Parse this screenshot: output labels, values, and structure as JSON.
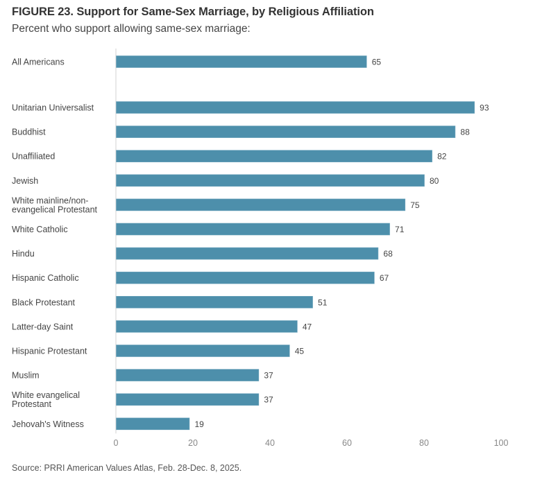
{
  "chart_data": {
    "type": "bar",
    "orientation": "horizontal",
    "title": "FIGURE 23.  Support for Same-Sex Marriage, by Religious Affiliation",
    "subtitle": "Percent who support allowing same-sex marriage:",
    "source": "Source: PRRI American Values Atlas, Feb. 28-Dec. 8, 2025.",
    "xlabel": "",
    "ylabel": "",
    "xlim": [
      0,
      100
    ],
    "xticks": [
      "0",
      "20",
      "40",
      "60",
      "80",
      "100"
    ],
    "grid": false,
    "bar_color": "#4d8fab",
    "categories": [
      [
        "All Americans"
      ],
      [
        "Unitarian Universalist"
      ],
      [
        "Buddhist"
      ],
      [
        "Unaffiliated"
      ],
      [
        "Jewish"
      ],
      [
        "White mainline/non-",
        "evangelical Protestant"
      ],
      [
        "White Catholic"
      ],
      [
        "Hindu"
      ],
      [
        "Hispanic Catholic"
      ],
      [
        "Black Protestant"
      ],
      [
        "Latter-day Saint"
      ],
      [
        "Hispanic Protestant"
      ],
      [
        "Muslim"
      ],
      [
        "White evangelical",
        "Protestant"
      ],
      [
        "Jehovah's Witness"
      ]
    ],
    "values": [
      65,
      93,
      88,
      82,
      80,
      75,
      71,
      68,
      67,
      51,
      47,
      45,
      37,
      37,
      19
    ],
    "value_labels": [
      "65",
      "93",
      "88",
      "82",
      "80",
      "75",
      "71",
      "68",
      "67",
      "51",
      "47",
      "45",
      "37",
      "37",
      "19"
    ]
  }
}
